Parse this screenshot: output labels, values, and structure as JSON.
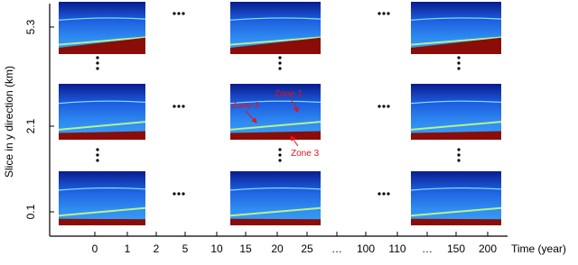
{
  "y_axis": {
    "label": "Slice in y direction (km)",
    "ticks": [
      "0.1",
      "2.1",
      "5.3"
    ]
  },
  "x_axis": {
    "label": "Time (year)",
    "ticks": [
      "0",
      "1",
      "2",
      "5",
      "10",
      "15",
      "20",
      "25",
      "…",
      "100",
      "110",
      "…",
      "150",
      "200"
    ]
  },
  "annotations": {
    "zone_1": "Zone 1",
    "zone_2": "Zone 2",
    "zone_3": "Zone 3"
  }
}
